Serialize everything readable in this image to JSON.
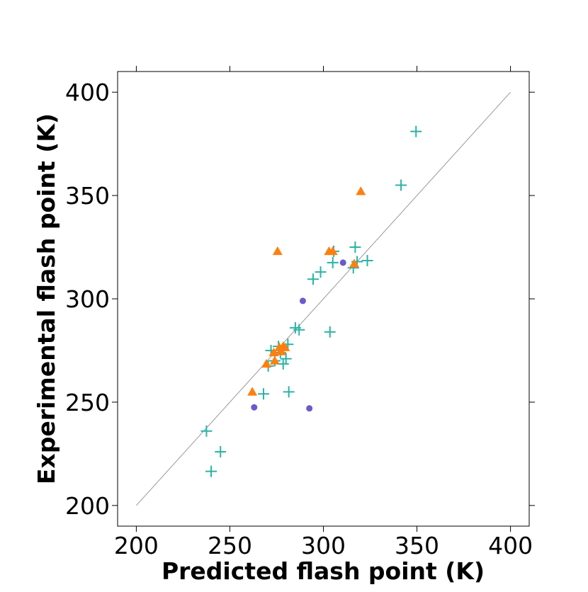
{
  "chart_data": {
    "type": "scatter",
    "xlabel": "Predicted flash point (K)",
    "ylabel": "Experimental flash point (K)",
    "xlim": [
      190,
      410
    ],
    "ylim": [
      190,
      410
    ],
    "xticks": [
      200,
      250,
      300,
      350,
      400
    ],
    "yticks": [
      200,
      250,
      300,
      350,
      400
    ],
    "grid": false,
    "legend": "none",
    "reference_line": {
      "from": [
        200,
        200
      ],
      "to": [
        400,
        400
      ],
      "color": "#999999"
    },
    "series": [
      {
        "marker": "plus",
        "color": "#2ab3a6",
        "points": [
          [
            237.5,
            236
          ],
          [
            240,
            216.5
          ],
          [
            245,
            226
          ],
          [
            268,
            254
          ],
          [
            270.5,
            267.5
          ],
          [
            272,
            275
          ],
          [
            274,
            270
          ],
          [
            276,
            277
          ],
          [
            277,
            274
          ],
          [
            278.5,
            268.5
          ],
          [
            280,
            271
          ],
          [
            281,
            278
          ],
          [
            281.5,
            255
          ],
          [
            285,
            286
          ],
          [
            287,
            285
          ],
          [
            294.5,
            309.5
          ],
          [
            298.5,
            313
          ],
          [
            303.5,
            284
          ],
          [
            305,
            317.5
          ],
          [
            305.5,
            323
          ],
          [
            316,
            315
          ],
          [
            317,
            325
          ],
          [
            318,
            318
          ],
          [
            323.5,
            318.5
          ],
          [
            341.5,
            355
          ],
          [
            349.5,
            381
          ]
        ]
      },
      {
        "marker": "triangle",
        "color": "#ff7f0e",
        "points": [
          [
            262,
            255
          ],
          [
            269.5,
            268.5
          ],
          [
            273.5,
            274
          ],
          [
            274,
            270
          ],
          [
            275.5,
            323
          ],
          [
            276.5,
            276.5
          ],
          [
            277.5,
            274.5
          ],
          [
            278.5,
            277
          ],
          [
            279.5,
            276.5
          ],
          [
            303,
            323
          ],
          [
            305,
            323
          ],
          [
            316.5,
            317
          ],
          [
            320,
            352
          ]
        ]
      },
      {
        "marker": "circle",
        "color": "#6a5acd",
        "points": [
          [
            263,
            247.5
          ],
          [
            289,
            299
          ],
          [
            292.5,
            247
          ],
          [
            310.5,
            317.5
          ]
        ]
      }
    ]
  }
}
